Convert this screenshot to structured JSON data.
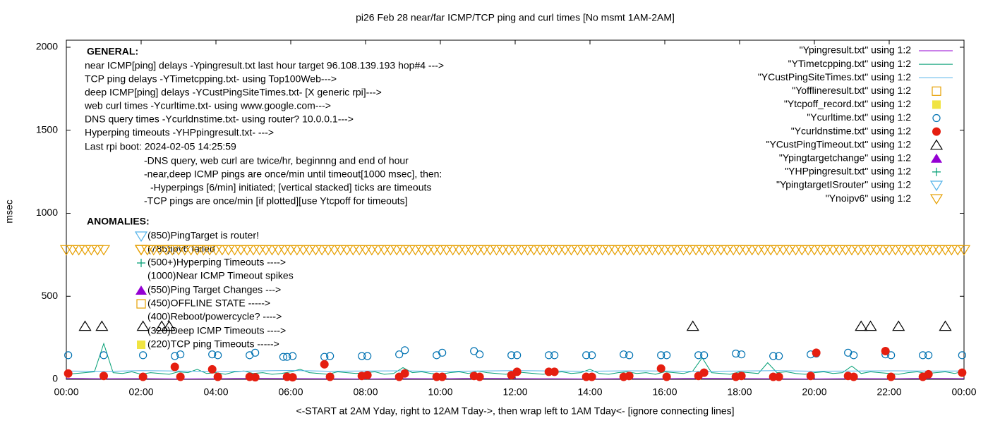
{
  "chart_data": {
    "type": "line",
    "title": "pi26 Feb 28  near/far ICMP/TCP ping and curl times [No msmt 1AM-2AM]",
    "x_label": "<-START at 2AM Yday, right to 12AM Tday->, then wrap left to 1AM Tday<- [ignore connecting lines]",
    "y_label": "msec",
    "xlim": [
      0,
      1440
    ],
    "xticks": [
      {
        "value": 0,
        "label": "00:00"
      },
      {
        "value": 120,
        "label": "02:00"
      },
      {
        "value": 240,
        "label": "04:00"
      },
      {
        "value": 360,
        "label": "06:00"
      },
      {
        "value": 480,
        "label": "08:00"
      },
      {
        "value": 600,
        "label": "10:00"
      },
      {
        "value": 720,
        "label": "12:00"
      },
      {
        "value": 840,
        "label": "14:00"
      },
      {
        "value": 960,
        "label": "16:00"
      },
      {
        "value": 1080,
        "label": "18:00"
      },
      {
        "value": 1200,
        "label": "20:00"
      },
      {
        "value": 1320,
        "label": "22:00"
      },
      {
        "value": 1440,
        "label": "00:00"
      }
    ],
    "ylim": [
      0,
      2000
    ],
    "yticks": [
      0,
      500,
      1000,
      1500,
      2000
    ],
    "legend": "top-right",
    "notes": [
      "GENERAL:",
      "near ICMP[ping] delays -Ypingresult.txt last hour target 96.108.139.193 hop#4 --->",
      "TCP ping delays -YTimetcpping.txt- using Top100Web--->",
      "deep ICMP[ping] delays -YCustPingSiteTimes.txt- [X generic rpi]--->",
      "web curl times -Ycurltime.txt- using www.google.com--->",
      "DNS query times -Ycurldnstime.txt- using router? 10.0.0.1--->",
      "Hyperping timeouts -YHPpingresult.txt- --->",
      "Last rpi boot: 2024-02-05 14:25:59",
      "-DNS query, web curl are twice/hr, beginnng and end of hour",
      "-near,deep ICMP pings are once/min until timeout[1000 msec], then:",
      "-Hyperpings [6/min] initiated; [vertical stacked] ticks are timeouts",
      "-TCP pings are once/min [if plotted][use Ytcpoff for timeouts]",
      "ANOMALIES:",
      "(850)PingTarget is router!",
      "(785)ipv6 failed",
      "(500+)Hyperping Timeouts ---->",
      "(1000)Near ICMP Timeout spikes",
      "(550)Ping Target Changes --->",
      "(450)OFFLINE STATE ----->",
      "(400)Reboot/powercycle? ---->",
      "(320)Deep ICMP Timeouts ---->",
      "(220)TCP ping Timeouts ----->"
    ],
    "series": [
      {
        "name": "\"Ypingresult.txt\" using 1:2",
        "color": "#9400d3",
        "style": "line",
        "x": [
          0,
          60,
          120,
          180,
          240,
          300,
          360,
          420,
          480,
          540,
          600,
          660,
          720,
          780,
          840,
          900,
          960,
          1020,
          1080,
          1140,
          1200,
          1260,
          1320,
          1380,
          1440
        ],
        "values": [
          5,
          3,
          4,
          2,
          3,
          5,
          4,
          3,
          2,
          4,
          3,
          5,
          4,
          3,
          2,
          4,
          3,
          5,
          4,
          3,
          2,
          4,
          3,
          5,
          4
        ]
      },
      {
        "name": "\"YTimetcpping.txt\" using 1:2",
        "color": "#009e73",
        "style": "line",
        "x": [
          0,
          15,
          30,
          45,
          60,
          75,
          90,
          105,
          120,
          135,
          150,
          165,
          180,
          195,
          210,
          225,
          240,
          255,
          270,
          285,
          300,
          315,
          330,
          345,
          360,
          375,
          390,
          405,
          420,
          435,
          450,
          465,
          480,
          495,
          510,
          525,
          540,
          555,
          570,
          585,
          600,
          615,
          630,
          645,
          660,
          675,
          690,
          705,
          720,
          735,
          750,
          765,
          780,
          795,
          810,
          825,
          840,
          855,
          870,
          885,
          900,
          915,
          930,
          945,
          960,
          975,
          990,
          1005,
          1020,
          1035,
          1050,
          1065,
          1080,
          1095,
          1110,
          1125,
          1140,
          1155,
          1170,
          1185,
          1200,
          1215,
          1230,
          1245,
          1260,
          1275,
          1290,
          1305,
          1320,
          1335,
          1350,
          1365,
          1380,
          1395,
          1410,
          1425,
          1440
        ],
        "values": [
          30,
          35,
          40,
          45,
          215,
          40,
          35,
          45,
          30,
          40,
          35,
          30,
          45,
          40,
          60,
          35,
          40,
          30,
          45,
          50,
          35,
          40,
          30,
          35,
          45,
          60,
          40,
          35,
          30,
          45,
          40,
          35,
          40,
          45,
          30,
          35,
          70,
          40,
          45,
          35,
          30,
          40,
          45,
          35,
          50,
          40,
          35,
          30,
          45,
          40,
          35,
          30,
          40,
          45,
          35,
          40,
          60,
          35,
          30,
          40,
          45,
          35,
          40,
          30,
          45,
          40,
          35,
          50,
          130,
          40,
          35,
          30,
          45,
          40,
          35,
          100,
          40,
          45,
          35,
          30,
          40,
          45,
          35,
          40,
          80,
          35,
          45,
          40,
          35,
          30,
          40,
          45,
          35,
          40,
          45,
          35,
          50
        ]
      },
      {
        "name": "\"YCustPingSiteTimes.txt\" using 1:2",
        "color": "#56b4e9",
        "style": "line",
        "x": [
          0,
          60,
          120,
          180,
          240,
          300,
          360,
          420,
          480,
          540,
          600,
          660,
          720,
          780,
          840,
          900,
          960,
          1020,
          1080,
          1140,
          1200,
          1260,
          1320,
          1380,
          1440
        ],
        "values": [
          50,
          48,
          52,
          50,
          47,
          50,
          53,
          49,
          50,
          51,
          48,
          50,
          52,
          50,
          49,
          51,
          50,
          48,
          50,
          52,
          49,
          50,
          51,
          50,
          50
        ]
      },
      {
        "name": "\"Yofflineresult.txt\" using 1:2",
        "color": "#e69f00",
        "style": "square-open",
        "x": [],
        "values": []
      },
      {
        "name": "\"Ytcpoff_record.txt\" using 1:2",
        "color": "#f0e442",
        "style": "square-filled",
        "x": [],
        "values": []
      },
      {
        "name": "\"Ycurltime.txt\" using 1:2",
        "color": "#0072b2",
        "style": "circle-open",
        "x": [
          3,
          60,
          123,
          174,
          183,
          234,
          243,
          294,
          303,
          348,
          354,
          363,
          414,
          423,
          474,
          483,
          534,
          543,
          594,
          603,
          654,
          663,
          714,
          723,
          774,
          783,
          834,
          843,
          894,
          903,
          954,
          963,
          1014,
          1023,
          1074,
          1083,
          1134,
          1143,
          1194,
          1203,
          1254,
          1263,
          1314,
          1323,
          1374,
          1383,
          1437
        ],
        "values": [
          145,
          145,
          145,
          140,
          150,
          150,
          145,
          145,
          160,
          135,
          135,
          140,
          135,
          140,
          140,
          140,
          150,
          175,
          145,
          160,
          170,
          150,
          145,
          145,
          145,
          145,
          145,
          145,
          150,
          145,
          145,
          145,
          145,
          145,
          155,
          150,
          140,
          140,
          150,
          155,
          160,
          145,
          150,
          145,
          145,
          145,
          145
        ]
      },
      {
        "name": "\"Ycurldnstime.txt\" using 1:2",
        "color": "#e51e10",
        "style": "circle-filled",
        "x": [
          3,
          60,
          123,
          174,
          183,
          234,
          243,
          294,
          303,
          354,
          363,
          414,
          423,
          474,
          483,
          534,
          543,
          594,
          603,
          654,
          663,
          714,
          723,
          774,
          783,
          834,
          843,
          894,
          903,
          954,
          963,
          1014,
          1023,
          1074,
          1083,
          1134,
          1143,
          1194,
          1203,
          1254,
          1263,
          1314,
          1323,
          1374,
          1383,
          1437
        ],
        "values": [
          35,
          20,
          15,
          75,
          15,
          60,
          15,
          15,
          12,
          15,
          12,
          90,
          15,
          20,
          25,
          15,
          35,
          15,
          15,
          20,
          15,
          25,
          45,
          45,
          45,
          15,
          15,
          15,
          20,
          65,
          15,
          20,
          40,
          15,
          20,
          15,
          15,
          20,
          160,
          20,
          15,
          170,
          15,
          15,
          30,
          40
        ]
      },
      {
        "name": "\"YCustPingTimeout.txt\" using 1:2",
        "color": "#000000",
        "style": "triangle-open",
        "x": [
          30,
          57,
          123,
          153,
          165,
          1005,
          1275,
          1290,
          1335,
          1410
        ],
        "values": [
          320,
          320,
          320,
          320,
          320,
          320,
          320,
          320,
          320,
          320
        ]
      },
      {
        "name": "\"Ypingtargetchange\" using 1:2",
        "color": "#9400d3",
        "style": "triangle-filled",
        "x": [],
        "values": []
      },
      {
        "name": "\"YHPpingresult.txt\" using 1:2",
        "color": "#009e73",
        "style": "plus",
        "x": [],
        "values": []
      },
      {
        "name": "\"YpingtargetISrouter\" using 1:2",
        "color": "#56b4e9",
        "style": "triangle-down-open",
        "x": [],
        "values": []
      },
      {
        "name": "\"Ynoipv6\" using 1:2",
        "color": "#e69f00",
        "style": "triangle-down-open",
        "x": [
          0,
          10,
          20,
          30,
          40,
          50,
          60,
          120,
          130,
          140,
          150,
          160,
          170,
          180,
          190,
          200,
          210,
          220,
          230,
          240,
          250,
          260,
          270,
          280,
          290,
          300,
          310,
          320,
          330,
          340,
          350,
          360,
          370,
          380,
          390,
          400,
          410,
          420,
          430,
          440,
          450,
          460,
          470,
          480,
          490,
          500,
          510,
          520,
          530,
          540,
          550,
          560,
          570,
          580,
          590,
          600,
          610,
          620,
          630,
          640,
          650,
          660,
          670,
          680,
          690,
          700,
          710,
          720,
          730,
          740,
          750,
          760,
          770,
          780,
          790,
          800,
          810,
          820,
          830,
          840,
          850,
          860,
          870,
          880,
          890,
          900,
          910,
          920,
          930,
          940,
          950,
          960,
          970,
          980,
          990,
          1000,
          1010,
          1020,
          1030,
          1040,
          1050,
          1060,
          1070,
          1080,
          1090,
          1100,
          1110,
          1120,
          1130,
          1140,
          1150,
          1160,
          1170,
          1180,
          1190,
          1200,
          1210,
          1220,
          1230,
          1240,
          1250,
          1260,
          1270,
          1280,
          1290,
          1300,
          1310,
          1320,
          1330,
          1340,
          1350,
          1360,
          1370,
          1380,
          1390,
          1400,
          1410,
          1420,
          1430,
          1440
        ],
        "values": [
          780,
          780,
          780,
          780,
          780,
          780,
          780,
          780,
          780,
          780,
          780,
          780,
          780,
          780,
          780,
          780,
          780,
          780,
          780,
          780,
          780,
          780,
          780,
          780,
          780,
          780,
          780,
          780,
          780,
          780,
          780,
          780,
          780,
          780,
          780,
          780,
          780,
          780,
          780,
          780,
          780,
          780,
          780,
          780,
          780,
          780,
          780,
          780,
          780,
          780,
          780,
          780,
          780,
          780,
          780,
          780,
          780,
          780,
          780,
          780,
          780,
          780,
          780,
          780,
          780,
          780,
          780,
          780,
          780,
          780,
          780,
          780,
          780,
          780,
          780,
          780,
          780,
          780,
          780,
          780,
          780,
          780,
          780,
          780,
          780,
          780,
          780,
          780,
          780,
          780,
          780,
          780,
          780,
          780,
          780,
          780,
          780,
          780,
          780,
          780,
          780,
          780,
          780,
          780,
          780,
          780,
          780,
          780,
          780,
          780,
          780,
          780,
          780,
          780,
          780,
          780,
          780,
          780,
          780,
          780,
          780,
          780,
          780,
          780,
          780,
          780,
          780,
          780,
          780,
          780,
          780,
          780,
          780,
          780,
          780,
          780,
          780,
          780,
          780,
          780
        ]
      }
    ]
  }
}
